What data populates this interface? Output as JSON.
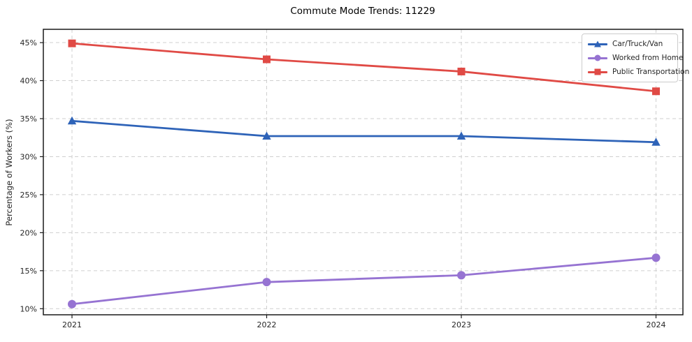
{
  "chart_data": {
    "type": "line",
    "title": "Commute Mode Trends: 11229",
    "ylabel": "Percentage of Workers (%)",
    "xlabel": "",
    "x_categories": [
      "2021",
      "2022",
      "2023",
      "2024"
    ],
    "y_ticks": [
      {
        "value": 10,
        "label": "10%"
      },
      {
        "value": 15,
        "label": "15%"
      },
      {
        "value": 20,
        "label": "20%"
      },
      {
        "value": 25,
        "label": "25%"
      },
      {
        "value": 30,
        "label": "30%"
      },
      {
        "value": 35,
        "label": "35%"
      },
      {
        "value": 40,
        "label": "40%"
      },
      {
        "value": 45,
        "label": "45%"
      }
    ],
    "ylim": [
      9.2,
      46.75
    ],
    "grid": true,
    "grid_style": "dashed",
    "legend_position": "upper-right",
    "series": [
      {
        "name": "Car/Truck/Van",
        "marker": "triangle-up",
        "color": "#2e63b8",
        "values": [
          34.7,
          32.7,
          32.7,
          31.9
        ]
      },
      {
        "name": "Worked from Home",
        "marker": "circle",
        "color": "#9673d2",
        "values": [
          10.6,
          13.5,
          14.4,
          16.7
        ]
      },
      {
        "name": "Public Transportation",
        "marker": "square",
        "color": "#e04a45",
        "values": [
          44.9,
          42.8,
          41.2,
          38.6
        ]
      }
    ],
    "colors": {
      "text": "#262626",
      "grid": "#cfcfcf",
      "spine": "#1a1a1a",
      "background": "#ffffff"
    }
  }
}
